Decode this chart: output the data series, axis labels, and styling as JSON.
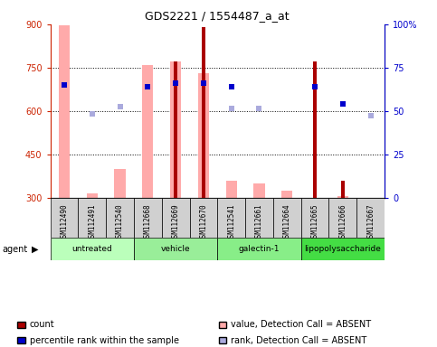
{
  "title": "GDS2221 / 1554487_a_at",
  "samples": [
    "GSM112490",
    "GSM112491",
    "GSM112540",
    "GSM112668",
    "GSM112669",
    "GSM112670",
    "GSM112541",
    "GSM112661",
    "GSM112664",
    "GSM112665",
    "GSM112666",
    "GSM112667"
  ],
  "groups": [
    {
      "label": "untreated",
      "color": "#bbffbb",
      "indices": [
        0,
        1,
        2
      ]
    },
    {
      "label": "vehicle",
      "color": "#99ee99",
      "indices": [
        3,
        4,
        5
      ]
    },
    {
      "label": "galectin-1",
      "color": "#88ee88",
      "indices": [
        6,
        7,
        8
      ]
    },
    {
      "label": "lipopolysaccharide",
      "color": "#44dd44",
      "indices": [
        9,
        10,
        11
      ]
    }
  ],
  "value_absent": [
    895,
    315,
    400,
    760,
    770,
    730,
    360,
    350,
    325,
    null,
    305,
    null
  ],
  "rank_absent": [
    null,
    590,
    615,
    null,
    null,
    null,
    610,
    610,
    null,
    null,
    null,
    583
  ],
  "count": [
    null,
    null,
    null,
    null,
    770,
    890,
    null,
    null,
    null,
    770,
    360,
    null
  ],
  "percentile": [
    690,
    null,
    null,
    685,
    695,
    695,
    685,
    null,
    null,
    685,
    625,
    null
  ],
  "ylim_left": [
    300,
    900
  ],
  "ylim_right": [
    0,
    100
  ],
  "yticks_left": [
    300,
    450,
    600,
    750,
    900
  ],
  "yticks_right": [
    0,
    25,
    50,
    75,
    100
  ],
  "bar_bottom": 300,
  "left_axis_color": "#cc2200",
  "right_axis_color": "#0000cc",
  "value_absent_color": "#ffaaaa",
  "rank_absent_color": "#aaaadd",
  "count_color": "#aa0000",
  "percentile_color": "#0000cc",
  "bg_color": "#ffffff",
  "legend_items": [
    {
      "color": "#aa0000",
      "label": "count"
    },
    {
      "color": "#0000cc",
      "label": "percentile rank within the sample"
    },
    {
      "color": "#ffaaaa",
      "label": "value, Detection Call = ABSENT"
    },
    {
      "color": "#aaaadd",
      "label": "rank, Detection Call = ABSENT"
    }
  ]
}
